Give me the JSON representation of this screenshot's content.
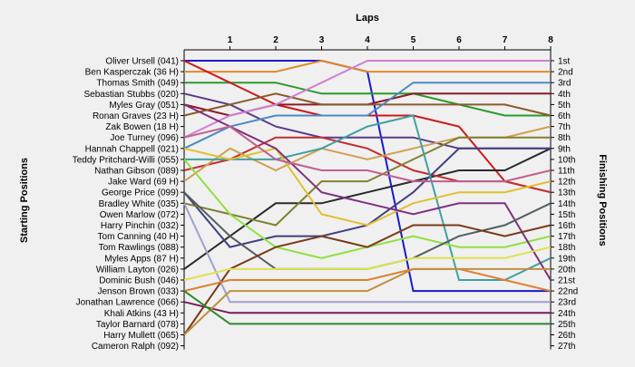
{
  "chart_data": {
    "type": "line",
    "title": "",
    "xlabel": "Laps",
    "ylabel_left": "Starting Positions",
    "ylabel_right": "Finishing Positions",
    "x": [
      0,
      1,
      2,
      3,
      4,
      5,
      6,
      7,
      8
    ],
    "x_tick_labels": [
      "1",
      "2",
      "3",
      "4",
      "5",
      "6",
      "7",
      "8"
    ],
    "xlim": [
      0,
      8
    ],
    "ylim": [
      1,
      27
    ],
    "y_inverted": true,
    "grid": false,
    "starting_labels": [
      "Oliver Ursell (041)",
      "Ben Kasperczak (36 H)",
      "Thomas Smith (049)",
      "Sebastian Stubbs (020)",
      "Myles Gray (051)",
      "Ronan Graves (23 H)",
      "Zak Bowen (18 H)",
      "Joe Turney (096)",
      "Hannah Chappell (021)",
      "Teddy Pritchard-Willi (055)",
      "Nathan Gibson (089)",
      "Jake Ward (69 H)",
      "George Price (099)",
      "Bradley White (035)",
      "Owen Marlow (072)",
      "Harry Pinchin (032)",
      "Tom Canning (40 H)",
      "Tom Rawlings (088)",
      "Myles Apps (87 H)",
      "William Layton (026)",
      "Dominic Bush (046)",
      "Jenson Brown (033)",
      "Jonathan Lawrence (066)",
      "Khali Atkins (43 H)",
      "Taylor Barnard (078)",
      "Harry Mullett (065)",
      "Cameron Ralph (092)"
    ],
    "finishing_labels": [
      "1st",
      "2nd",
      "3rd",
      "4th",
      "5th",
      "6th",
      "7th",
      "8th",
      "9th",
      "10th",
      "11th",
      "12th",
      "13th",
      "14th",
      "15th",
      "16th",
      "17th",
      "18th",
      "19th",
      "20th",
      "21st",
      "22nd",
      "23rd",
      "24th",
      "25th",
      "26th",
      "27th"
    ],
    "series": [
      {
        "color": "#1a1acc",
        "values": [
          1,
          1,
          1,
          1,
          2,
          22,
          22,
          22,
          22
        ]
      },
      {
        "color": "#e08a2a",
        "values": [
          2,
          2,
          2,
          1,
          2,
          2,
          2,
          2,
          2
        ]
      },
      {
        "color": "#2a9a2a",
        "values": [
          3,
          3,
          3,
          4,
          4,
          4,
          5,
          6,
          6
        ]
      },
      {
        "color": "#cc1a1a",
        "values": [
          1,
          3,
          5,
          6,
          6,
          6,
          7,
          12,
          13
        ]
      },
      {
        "color": "#5a3a8a",
        "values": [
          4,
          5,
          7,
          8,
          8,
          8,
          9,
          9,
          9
        ]
      },
      {
        "color": "#8a1a2a",
        "values": [
          5,
          6,
          5,
          5,
          5,
          4,
          4,
          4,
          4
        ]
      },
      {
        "color": "#8a5a2a",
        "values": [
          6,
          5,
          4,
          5,
          5,
          5,
          5,
          5,
          6
        ]
      },
      {
        "color": "#4a8ac4",
        "values": [
          9,
          7,
          6,
          6,
          6,
          3,
          3,
          3,
          3
        ]
      },
      {
        "color": "#d080d0",
        "values": [
          8,
          6,
          5,
          3,
          1,
          1,
          1,
          1,
          1
        ]
      },
      {
        "color": "#2a2a2a",
        "values": [
          20,
          17,
          14,
          14,
          13,
          12,
          11,
          11,
          9
        ]
      },
      {
        "color": "#c03030",
        "values": [
          11,
          10,
          8,
          8,
          9,
          11,
          12,
          12,
          13
        ]
      },
      {
        "color": "#d0a050",
        "values": [
          12,
          9,
          11,
          9,
          10,
          9,
          8,
          8,
          7
        ]
      },
      {
        "color": "#404080",
        "values": [
          13,
          18,
          17,
          17,
          16,
          13,
          9,
          9,
          9
        ]
      },
      {
        "color": "#808030",
        "values": [
          14,
          15,
          16,
          12,
          12,
          10,
          8,
          8,
          8
        ]
      },
      {
        "color": "#40a0a0",
        "values": [
          10,
          10,
          10,
          9,
          7,
          6,
          21,
          21,
          19
        ]
      },
      {
        "color": "#90e040",
        "values": [
          10,
          15,
          18,
          19,
          18,
          17,
          18,
          18,
          17
        ]
      },
      {
        "color": "#a0a0d0",
        "values": [
          14,
          23,
          23,
          23,
          23,
          23,
          23,
          23,
          23
        ]
      },
      {
        "color": "#e0c030",
        "values": [
          9,
          10,
          9,
          15,
          16,
          14,
          13,
          13,
          12
        ]
      },
      {
        "color": "#803080",
        "values": [
          5,
          7,
          9,
          13,
          14,
          15,
          14,
          14,
          21
        ]
      },
      {
        "color": "#506060",
        "values": [
          13,
          17,
          20,
          20,
          20,
          19,
          17,
          16,
          14
        ]
      },
      {
        "color": "#7a3a1a",
        "values": [
          26,
          20,
          18,
          17,
          18,
          16,
          16,
          17,
          16
        ]
      },
      {
        "color": "#e0e050",
        "values": [
          21,
          20,
          20,
          20,
          20,
          19,
          19,
          19,
          18
        ]
      },
      {
        "color": "#e08030",
        "values": [
          22,
          21,
          21,
          21,
          21,
          20,
          20,
          21,
          22
        ]
      },
      {
        "color": "#7a1a5a",
        "values": [
          23,
          24,
          24,
          24,
          24,
          24,
          24,
          24,
          24
        ]
      },
      {
        "color": "#c09040",
        "values": [
          26,
          22,
          22,
          22,
          22,
          20,
          20,
          20,
          20
        ]
      },
      {
        "color": "#2a8a2a",
        "values": [
          22,
          25,
          25,
          25,
          25,
          25,
          25,
          25,
          25
        ]
      },
      {
        "color": "#c06090",
        "values": [
          8,
          7,
          10,
          11,
          11,
          12,
          12,
          12,
          11
        ]
      }
    ]
  }
}
